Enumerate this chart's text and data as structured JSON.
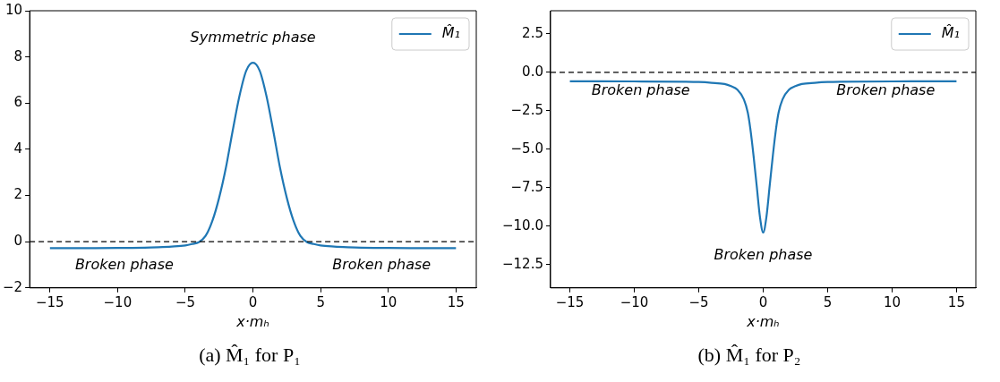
{
  "chart_data": [
    {
      "type": "line",
      "title": "(a) M̂₁ for P₁",
      "xlabel": "x·mₕ",
      "series": [
        {
          "name": "M̂₁",
          "color": "#1f77b4",
          "x": [
            -15,
            -12,
            -10,
            -8,
            -7,
            -6,
            -5,
            -4.5,
            -4,
            -3.5,
            -3,
            -2.5,
            -2,
            -1.5,
            -1,
            -0.5,
            0,
            0.5,
            1,
            1.5,
            2,
            2.5,
            3,
            3.5,
            4,
            4.5,
            5,
            6,
            7,
            8,
            10,
            12,
            15
          ],
          "values": [
            -0.28,
            -0.28,
            -0.27,
            -0.26,
            -0.24,
            -0.21,
            -0.16,
            -0.1,
            -0.02,
            0.25,
            0.9,
            1.9,
            3.2,
            4.8,
            6.3,
            7.4,
            7.75,
            7.4,
            6.3,
            4.8,
            3.2,
            1.9,
            0.9,
            0.25,
            -0.02,
            -0.1,
            -0.16,
            -0.21,
            -0.24,
            -0.26,
            -0.27,
            -0.28,
            -0.28
          ]
        }
      ],
      "xlim": [
        -16.5,
        16.5
      ],
      "xticks": [
        -15,
        -10,
        -5,
        0,
        5,
        10,
        15
      ],
      "ylim": [
        -2,
        10
      ],
      "yticks": [
        -2,
        0,
        2,
        4,
        6,
        8,
        10
      ],
      "ref_lines": [
        {
          "axis": "y",
          "value": 0,
          "color": "#000000",
          "line_style": "dashed"
        }
      ],
      "annotations": [
        "Symmetric phase",
        "Broken phase",
        "Broken phase"
      ],
      "grid": false,
      "legend": "top right",
      "marker": "none",
      "line_style": "solid"
    },
    {
      "type": "line",
      "title": "(b) M̂₁ for P₂",
      "xlabel": "x·mₕ",
      "series": [
        {
          "name": "M̂₁",
          "color": "#1f77b4",
          "x": [
            -15,
            -10,
            -6,
            -5,
            -4,
            -3,
            -2.5,
            -2,
            -1.5,
            -1.2,
            -1,
            -0.75,
            -0.5,
            -0.25,
            0,
            0.25,
            0.5,
            0.75,
            1,
            1.2,
            1.5,
            2,
            2.5,
            3,
            4,
            5,
            6,
            10,
            15
          ],
          "values": [
            -0.58,
            -0.59,
            -0.61,
            -0.63,
            -0.68,
            -0.76,
            -0.9,
            -1.13,
            -1.76,
            -2.6,
            -3.65,
            -5.4,
            -7.4,
            -9.4,
            -10.4,
            -9.4,
            -7.4,
            -5.4,
            -3.65,
            -2.6,
            -1.76,
            -1.13,
            -0.9,
            -0.76,
            -0.68,
            -0.63,
            -0.61,
            -0.59,
            -0.58
          ]
        }
      ],
      "xlim": [
        -16.5,
        16.5
      ],
      "xticks": [
        -15,
        -10,
        -5,
        0,
        5,
        10,
        15
      ],
      "ylim": [
        -14,
        4
      ],
      "yticks": [
        {
          "value": -12.5,
          "label": "−12.5"
        },
        {
          "value": -10,
          "label": "−10.0"
        },
        {
          "value": -7.5,
          "label": "−7.5"
        },
        {
          "value": -5,
          "label": "−5.0"
        },
        {
          "value": -2.5,
          "label": "−2.5"
        },
        {
          "value": 0,
          "label": "0.0"
        },
        {
          "value": 2.5,
          "label": "2.5"
        }
      ],
      "ref_lines": [
        {
          "axis": "y",
          "value": 0,
          "color": "#000000",
          "line_style": "dashed"
        }
      ],
      "annotations": [
        "Broken phase",
        "Broken phase",
        "Broken phase"
      ],
      "grid": false,
      "legend": "top right",
      "marker": "none",
      "line_style": "solid"
    }
  ]
}
